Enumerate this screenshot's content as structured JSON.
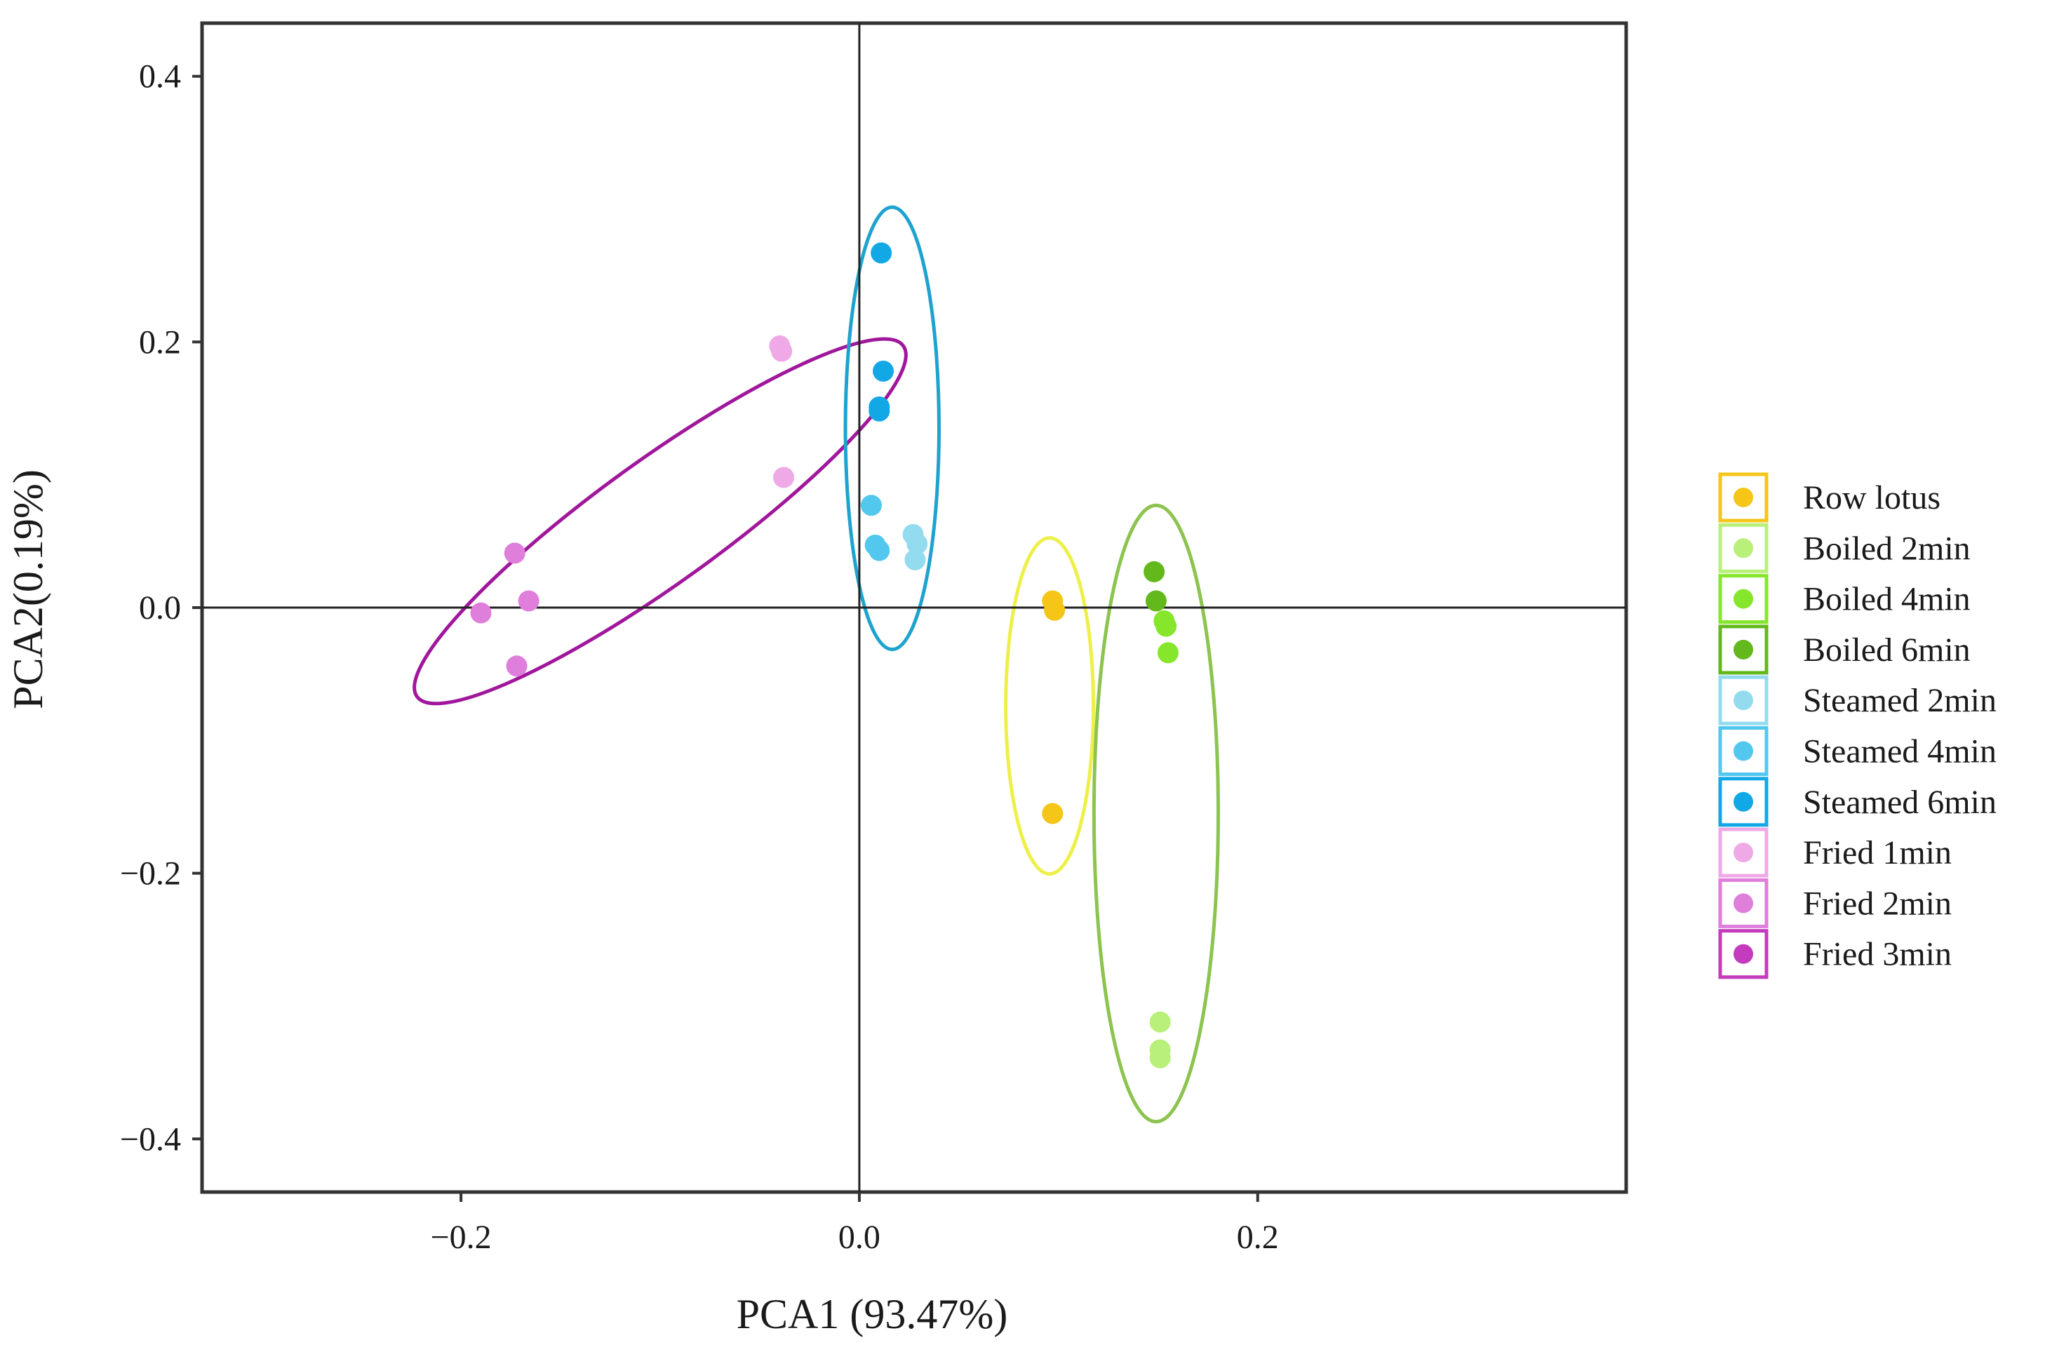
{
  "chart_data": {
    "type": "scatter",
    "xlabel": "PCA1 (93.47%)",
    "ylabel": "PCA2(0.19%)",
    "xlim": [
      -0.33,
      0.385
    ],
    "ylim": [
      -0.44,
      0.44
    ],
    "xticks": [
      -0.2,
      0.0,
      0.2
    ],
    "xtick_labels": [
      "−0.2",
      "0.0",
      "0.2"
    ],
    "yticks": [
      0.4,
      0.2,
      0.0,
      -0.2,
      -0.4
    ],
    "ytick_labels": [
      "0.4",
      "0.2",
      "0.0",
      "−0.2",
      "−0.4"
    ],
    "zero_lines": true,
    "grid": false,
    "legend_position": "right",
    "series": [
      {
        "name": "Row lotus",
        "color": "#f5c518",
        "points": [
          [
            0.097,
            0.005
          ],
          [
            0.098,
            -0.002
          ],
          [
            0.097,
            -0.155
          ]
        ]
      },
      {
        "name": "Boiled 2min",
        "color": "#b9f07a",
        "points": [
          [
            0.151,
            -0.312
          ],
          [
            0.151,
            -0.333
          ],
          [
            0.151,
            -0.339
          ]
        ]
      },
      {
        "name": "Boiled 4min",
        "color": "#86e62b",
        "points": [
          [
            0.153,
            -0.01
          ],
          [
            0.154,
            -0.014
          ],
          [
            0.155,
            -0.034
          ]
        ]
      },
      {
        "name": "Boiled 6min",
        "color": "#63b81c",
        "points": [
          [
            0.148,
            0.027
          ],
          [
            0.149,
            0.005
          ]
        ]
      },
      {
        "name": "Steamed 2min",
        "color": "#93dcf0",
        "points": [
          [
            0.027,
            0.055
          ],
          [
            0.029,
            0.048
          ],
          [
            0.028,
            0.036
          ]
        ]
      },
      {
        "name": "Steamed 4min",
        "color": "#52c8ef",
        "points": [
          [
            0.006,
            0.077
          ],
          [
            0.008,
            0.047
          ],
          [
            0.01,
            0.043
          ]
        ]
      },
      {
        "name": "Steamed 6min",
        "color": "#12a8e6",
        "points": [
          [
            0.011,
            0.267
          ],
          [
            0.012,
            0.178
          ],
          [
            0.01,
            0.151
          ],
          [
            0.01,
            0.148
          ]
        ]
      },
      {
        "name": "Fried  1min",
        "color": "#efa9e6",
        "points": [
          [
            -0.039,
            0.193
          ],
          [
            -0.04,
            0.197
          ],
          [
            -0.038,
            0.098
          ]
        ]
      },
      {
        "name": "Fried  2min",
        "color": "#df7edb",
        "points": [
          [
            -0.173,
            0.041
          ],
          [
            -0.166,
            0.005
          ],
          [
            -0.19,
            -0.004
          ],
          [
            -0.172,
            -0.044
          ]
        ]
      },
      {
        "name": "Fried  3min",
        "color": "#c43bbd",
        "points": []
      }
    ],
    "ellipses": [
      {
        "group": "Fried",
        "color": "#a0179b",
        "cx": -0.1,
        "cy": 0.065,
        "rx": 0.1505,
        "ry": 0.0462,
        "angle_deg": 35.8
      },
      {
        "group": "Steamed",
        "color": "#1ea3cf",
        "cx": 0.0165,
        "cy": 0.135,
        "rx": 0.0235,
        "ry": 0.1665,
        "angle_deg": 0
      },
      {
        "group": "Row lotus",
        "color": "#eef04a",
        "cx": 0.0955,
        "cy": -0.074,
        "rx": 0.022,
        "ry": 0.1265,
        "angle_deg": 0
      },
      {
        "group": "Boiled",
        "color": "#8cc44f",
        "cx": 0.149,
        "cy": -0.155,
        "rx": 0.0312,
        "ry": 0.232,
        "angle_deg": 0
      }
    ]
  }
}
